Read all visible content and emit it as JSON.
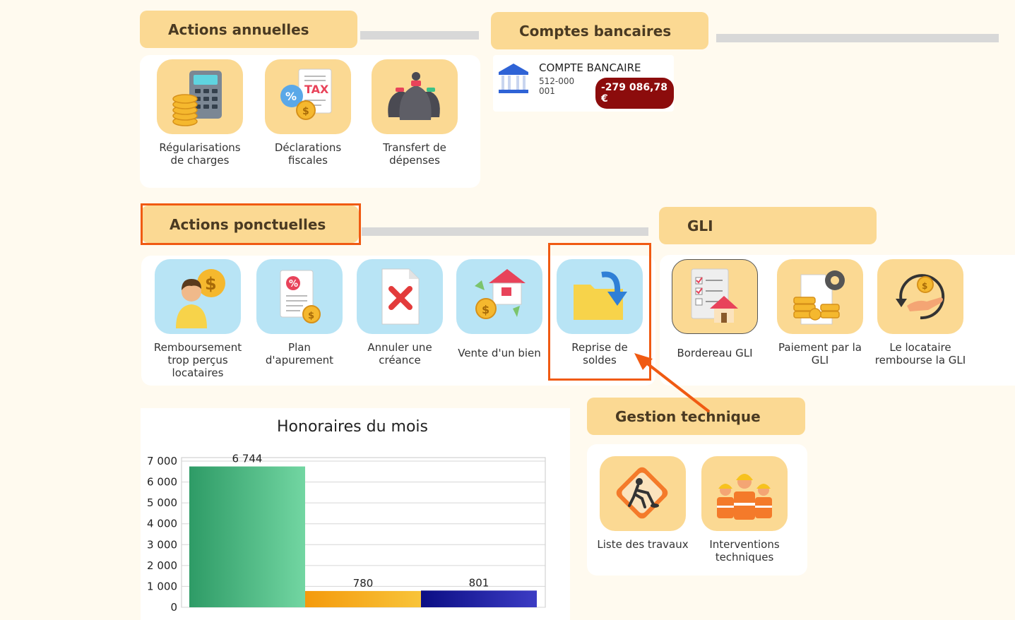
{
  "sections": {
    "annual": "Actions annuelles",
    "bank": "Comptes bancaires",
    "oneoff": "Actions ponctuelles",
    "gli": "GLI",
    "tech": "Gestion technique"
  },
  "annual_items": [
    {
      "label": "Régularisations de charges",
      "icon": "calculator-coins-icon"
    },
    {
      "label": "Déclarations fiscales",
      "icon": "tax-document-icon"
    },
    {
      "label": "Transfert de dépenses",
      "icon": "money-bags-icon"
    }
  ],
  "bank_account": {
    "label": "COMPTE BANCAIRE",
    "number": "512-000001",
    "balance": "-279 086,78 €",
    "icon": "bank-building-icon"
  },
  "oneoff_items": [
    {
      "label": "Remboursement trop perçus locataires",
      "icon": "person-dollar-icon"
    },
    {
      "label": "Plan d'apurement",
      "icon": "percent-document-icon"
    },
    {
      "label": "Annuler une créance",
      "icon": "cancel-document-icon"
    },
    {
      "label": "Vente d'un bien",
      "icon": "house-sale-icon"
    },
    {
      "label": "Reprise de soldes",
      "icon": "folder-arrow-icon"
    }
  ],
  "gli_items": [
    {
      "label": "Bordereau GLI",
      "icon": "checklist-house-icon"
    },
    {
      "label": "Paiement par la GLI",
      "icon": "payment-gear-icon"
    },
    {
      "label": "Le locataire rembourse la GLI",
      "icon": "refund-hand-icon"
    }
  ],
  "tech_items": [
    {
      "label": "Liste des travaux",
      "icon": "roadwork-sign-icon"
    },
    {
      "label": "Interventions techniques",
      "icon": "workers-icon"
    }
  ],
  "colors": {
    "accent": "#f05a12",
    "header_bg": "#fbd993",
    "negative_pill": "#8c0c0c"
  },
  "chart_data": {
    "type": "bar",
    "title": "Honoraires du mois",
    "categories": [
      "",
      "",
      ""
    ],
    "values": [
      6744,
      780,
      801
    ],
    "value_labels": [
      "6 744",
      "780",
      "801"
    ],
    "ylim": [
      0,
      7000
    ],
    "y_ticks": [
      0,
      1000,
      2000,
      3000,
      4000,
      5000,
      6000,
      7000
    ],
    "y_tick_labels": [
      "0",
      "1 000",
      "2 000",
      "3 000",
      "4 000",
      "5 000",
      "6 000",
      "7 000"
    ],
    "bar_colors": [
      [
        "#2e9b66",
        "#72d6a2"
      ],
      [
        "#f49a0c",
        "#f8c43a"
      ],
      [
        "#0b0e84",
        "#3c3cc4"
      ]
    ],
    "grid": true
  }
}
